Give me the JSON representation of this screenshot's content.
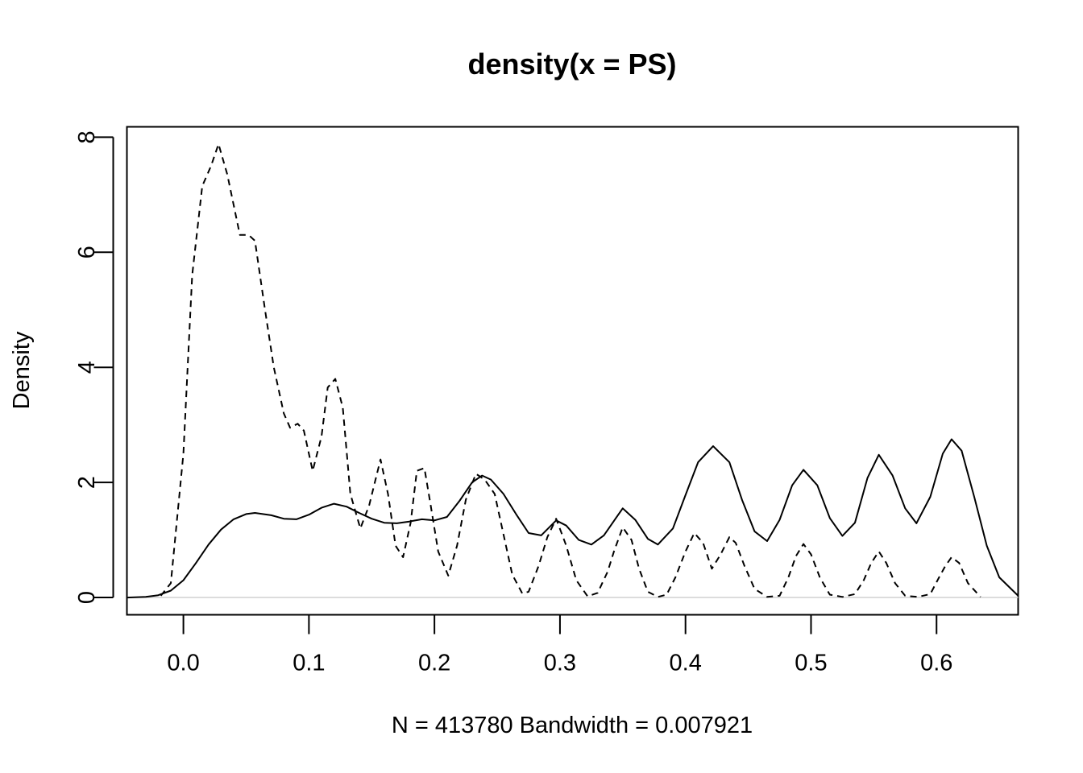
{
  "chart_data": {
    "type": "line",
    "title": "density(x = PS)",
    "xlabel": "N = 413780   Bandwidth = 0.007921",
    "ylabel": "Density",
    "xlim": [
      -0.045,
      0.665
    ],
    "ylim": [
      -0.3,
      8.18
    ],
    "x_ticks": [
      0.0,
      0.1,
      0.2,
      0.3,
      0.4,
      0.5,
      0.6
    ],
    "x_tick_labels": [
      "0.0",
      "0.1",
      "0.2",
      "0.3",
      "0.4",
      "0.5",
      "0.6"
    ],
    "y_ticks": [
      0,
      2,
      4,
      6,
      8
    ],
    "y_tick_labels": [
      "0",
      "2",
      "4",
      "6",
      "8"
    ],
    "zero_line": true,
    "grid": false,
    "legend": "none",
    "series": [
      {
        "style": "solid",
        "x": [
          -0.045,
          -0.03,
          -0.02,
          -0.01,
          0.0,
          0.01,
          0.02,
          0.03,
          0.04,
          0.05,
          0.057,
          0.07,
          0.08,
          0.09,
          0.1,
          0.11,
          0.12,
          0.13,
          0.14,
          0.15,
          0.16,
          0.17,
          0.18,
          0.19,
          0.2,
          0.21,
          0.22,
          0.23,
          0.238,
          0.245,
          0.255,
          0.265,
          0.275,
          0.285,
          0.297,
          0.305,
          0.315,
          0.325,
          0.335,
          0.35,
          0.36,
          0.37,
          0.378,
          0.39,
          0.4,
          0.41,
          0.422,
          0.435,
          0.445,
          0.455,
          0.465,
          0.475,
          0.485,
          0.494,
          0.505,
          0.515,
          0.525,
          0.535,
          0.545,
          0.554,
          0.565,
          0.575,
          0.584,
          0.595,
          0.605,
          0.612,
          0.62,
          0.63,
          0.64,
          0.65,
          0.665
        ],
        "y": [
          0.0,
          0.01,
          0.04,
          0.12,
          0.3,
          0.6,
          0.92,
          1.18,
          1.36,
          1.45,
          1.47,
          1.43,
          1.37,
          1.36,
          1.44,
          1.56,
          1.63,
          1.58,
          1.47,
          1.37,
          1.3,
          1.29,
          1.32,
          1.36,
          1.34,
          1.4,
          1.68,
          2.0,
          2.12,
          2.05,
          1.8,
          1.45,
          1.12,
          1.08,
          1.34,
          1.25,
          1.0,
          0.92,
          1.08,
          1.55,
          1.35,
          1.02,
          0.92,
          1.2,
          1.78,
          2.35,
          2.63,
          2.35,
          1.7,
          1.15,
          0.98,
          1.35,
          1.95,
          2.22,
          1.95,
          1.38,
          1.07,
          1.3,
          2.08,
          2.48,
          2.12,
          1.55,
          1.29,
          1.75,
          2.5,
          2.75,
          2.55,
          1.75,
          0.9,
          0.35,
          0.03
        ]
      },
      {
        "style": "dashed",
        "x": [
          -0.018,
          -0.01,
          0.0,
          0.007,
          0.015,
          0.022,
          0.028,
          0.035,
          0.045,
          0.052,
          0.057,
          0.065,
          0.072,
          0.08,
          0.085,
          0.091,
          0.096,
          0.103,
          0.11,
          0.115,
          0.121,
          0.127,
          0.133,
          0.141,
          0.148,
          0.157,
          0.163,
          0.169,
          0.175,
          0.181,
          0.186,
          0.192,
          0.197,
          0.203,
          0.211,
          0.218,
          0.225,
          0.233,
          0.24,
          0.248,
          0.255,
          0.262,
          0.27,
          0.275,
          0.283,
          0.29,
          0.297,
          0.305,
          0.313,
          0.322,
          0.33,
          0.338,
          0.343,
          0.35,
          0.357,
          0.363,
          0.37,
          0.378,
          0.385,
          0.392,
          0.4,
          0.407,
          0.414,
          0.421,
          0.428,
          0.435,
          0.44,
          0.447,
          0.455,
          0.465,
          0.475,
          0.482,
          0.488,
          0.494,
          0.5,
          0.507,
          0.515,
          0.525,
          0.535,
          0.542,
          0.548,
          0.554,
          0.56,
          0.567,
          0.575,
          0.585,
          0.595,
          0.602,
          0.607,
          0.612,
          0.618,
          0.625,
          0.635
        ],
        "y": [
          0.03,
          0.25,
          2.5,
          5.6,
          7.15,
          7.5,
          7.88,
          7.35,
          6.3,
          6.3,
          6.2,
          5.0,
          4.0,
          3.2,
          2.95,
          3.02,
          2.9,
          2.2,
          2.8,
          3.65,
          3.8,
          3.3,
          1.8,
          1.2,
          1.6,
          2.4,
          1.8,
          0.9,
          0.7,
          1.3,
          2.2,
          2.25,
          1.6,
          0.8,
          0.38,
          0.9,
          1.7,
          2.15,
          2.05,
          1.8,
          1.1,
          0.4,
          0.07,
          0.1,
          0.55,
          1.05,
          1.37,
          0.9,
          0.3,
          0.02,
          0.08,
          0.45,
          0.8,
          1.22,
          1.0,
          0.5,
          0.1,
          0.01,
          0.05,
          0.35,
          0.8,
          1.12,
          0.95,
          0.5,
          0.75,
          1.05,
          0.95,
          0.55,
          0.15,
          0.01,
          0.03,
          0.35,
          0.72,
          0.93,
          0.75,
          0.35,
          0.05,
          0.01,
          0.06,
          0.3,
          0.6,
          0.8,
          0.6,
          0.25,
          0.03,
          0.01,
          0.06,
          0.35,
          0.55,
          0.7,
          0.6,
          0.25,
          0.01
        ]
      }
    ]
  }
}
